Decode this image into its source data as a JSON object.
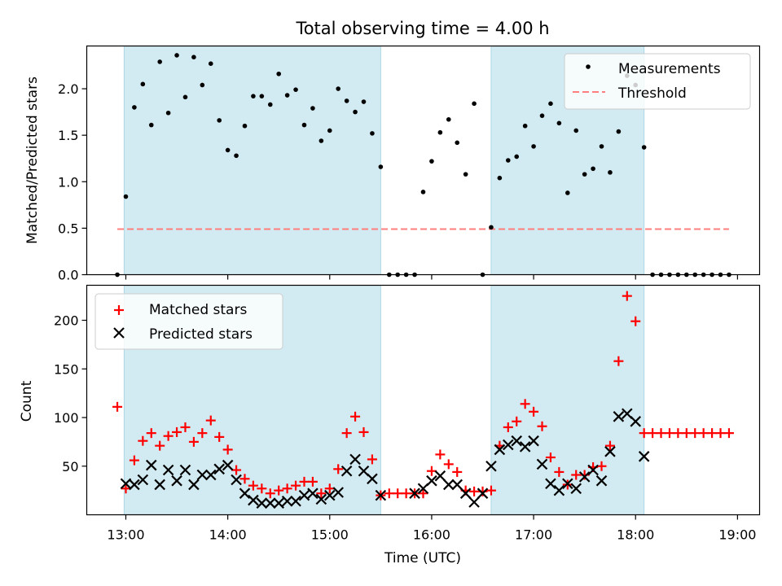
{
  "title": "Total observing time = 4.00 h",
  "colors": {
    "shade": "#add8e6",
    "measure": "#000000",
    "threshold": "#ff7f7f",
    "matched": "#ff0000",
    "predicted": "#000000"
  },
  "chart_data": [
    {
      "type": "scatter",
      "ylabel": "Matched/Predicted stars",
      "xlabel": "",
      "ylim": [
        0,
        2.46
      ],
      "yticks": [
        0.0,
        0.5,
        1.0,
        1.5,
        2.0
      ],
      "ytick_labels": [
        "0.0",
        "0.5",
        "1.0",
        "1.5",
        "2.0"
      ],
      "legend": {
        "placement": "top-right",
        "items": [
          {
            "label": "Measurements",
            "kind": "dot"
          },
          {
            "label": "Threshold",
            "kind": "dash"
          }
        ]
      },
      "shaded_ranges": [
        [
          "12:59",
          "15:30"
        ],
        [
          "16:35",
          "18:05"
        ]
      ],
      "threshold": {
        "y": 0.49,
        "x_range": [
          "12:55",
          "18:55"
        ]
      },
      "series": [
        {
          "name": "Measurements",
          "x": [
            "12:55",
            "13:00",
            "13:05",
            "13:10",
            "13:15",
            "13:20",
            "13:25",
            "13:30",
            "13:35",
            "13:40",
            "13:45",
            "13:50",
            "13:55",
            "14:00",
            "14:05",
            "14:10",
            "14:15",
            "14:20",
            "14:25",
            "14:30",
            "14:35",
            "14:40",
            "14:45",
            "14:50",
            "14:55",
            "15:00",
            "15:05",
            "15:10",
            "15:15",
            "15:20",
            "15:25",
            "15:30",
            "15:35",
            "15:40",
            "15:45",
            "15:50",
            "15:55",
            "16:00",
            "16:05",
            "16:10",
            "16:15",
            "16:20",
            "16:25",
            "16:30",
            "16:35",
            "16:40",
            "16:45",
            "16:50",
            "16:55",
            "17:00",
            "17:05",
            "17:10",
            "17:15",
            "17:20",
            "17:25",
            "17:30",
            "17:35",
            "17:40",
            "17:45",
            "17:50",
            "17:55",
            "18:00",
            "18:05",
            "18:10",
            "18:15",
            "18:20",
            "18:25",
            "18:30",
            "18:35",
            "18:40",
            "18:45",
            "18:50",
            "18:55"
          ],
          "y": [
            0.0,
            0.84,
            1.8,
            2.05,
            1.61,
            2.29,
            1.74,
            2.36,
            1.91,
            2.34,
            2.04,
            2.27,
            1.66,
            1.34,
            1.28,
            1.6,
            1.92,
            1.92,
            1.83,
            2.16,
            1.93,
            1.99,
            1.61,
            1.79,
            1.44,
            1.55,
            2.0,
            1.87,
            1.75,
            1.86,
            1.52,
            1.16,
            0.0,
            0.0,
            0.0,
            0.0,
            0.89,
            1.22,
            1.53,
            1.67,
            1.42,
            1.08,
            1.84,
            0.0,
            0.51,
            1.04,
            1.23,
            1.27,
            1.6,
            1.38,
            1.71,
            1.84,
            1.63,
            0.88,
            1.55,
            1.08,
            1.14,
            1.38,
            1.1,
            1.54,
            2.14,
            2.04,
            1.37,
            0.0,
            0.0,
            0.0,
            0.0,
            0.0,
            0.0,
            0.0,
            0.0,
            0.0,
            0.0
          ]
        }
      ]
    },
    {
      "type": "scatter",
      "ylabel": "Count",
      "xlabel": "Time (UTC)",
      "ylim": [
        0,
        236
      ],
      "yticks": [
        50,
        100,
        150,
        200
      ],
      "ytick_labels": [
        "50",
        "100",
        "150",
        "200"
      ],
      "xlim": [
        "12:37",
        "19:13"
      ],
      "xticks": [
        "13:00",
        "14:00",
        "15:00",
        "16:00",
        "17:00",
        "18:00",
        "19:00"
      ],
      "xtick_labels": [
        "13:00",
        "14:00",
        "15:00",
        "16:00",
        "17:00",
        "18:00",
        "19:00"
      ],
      "legend": {
        "placement": "top-left",
        "items": [
          {
            "label": "Matched stars",
            "kind": "plus"
          },
          {
            "label": "Predicted stars",
            "kind": "cross"
          }
        ]
      },
      "shaded_ranges": [
        [
          "12:59",
          "15:30"
        ],
        [
          "16:35",
          "18:05"
        ]
      ],
      "series": [
        {
          "name": "Matched stars",
          "x": [
            "12:55",
            "13:00",
            "13:05",
            "13:10",
            "13:15",
            "13:20",
            "13:25",
            "13:30",
            "13:35",
            "13:40",
            "13:45",
            "13:50",
            "13:55",
            "14:00",
            "14:05",
            "14:10",
            "14:15",
            "14:20",
            "14:25",
            "14:30",
            "14:35",
            "14:40",
            "14:45",
            "14:50",
            "14:55",
            "15:00",
            "15:05",
            "15:10",
            "15:15",
            "15:20",
            "15:25",
            "15:30",
            "15:35",
            "15:40",
            "15:45",
            "15:50",
            "15:55",
            "16:00",
            "16:05",
            "16:10",
            "16:15",
            "16:20",
            "16:25",
            "16:30",
            "16:35",
            "16:40",
            "16:45",
            "16:50",
            "16:55",
            "17:00",
            "17:05",
            "17:10",
            "17:15",
            "17:20",
            "17:25",
            "17:30",
            "17:35",
            "17:40",
            "17:45",
            "17:50",
            "17:55",
            "18:00",
            "18:05",
            "18:10",
            "18:15",
            "18:20",
            "18:25",
            "18:30",
            "18:35",
            "18:40",
            "18:45",
            "18:50",
            "18:55"
          ],
          "y": [
            111,
            27,
            56,
            76,
            84,
            71,
            81,
            85,
            90,
            75,
            84,
            97,
            80,
            67,
            46,
            37,
            30,
            27,
            22,
            25,
            27,
            30,
            34,
            34,
            22,
            27,
            47,
            84,
            101,
            85,
            57,
            20,
            22,
            22,
            22,
            22,
            22,
            45,
            62,
            52,
            44,
            25,
            24,
            24,
            25,
            71,
            90,
            96,
            114,
            106,
            91,
            59,
            44,
            31,
            41,
            41,
            49,
            50,
            71,
            158,
            225,
            199,
            84,
            84,
            84,
            84,
            84,
            84,
            84,
            84,
            84,
            84,
            84
          ]
        },
        {
          "name": "Predicted stars",
          "x": [
            "13:00",
            "13:05",
            "13:10",
            "13:15",
            "13:20",
            "13:25",
            "13:30",
            "13:35",
            "13:40",
            "13:45",
            "13:50",
            "13:55",
            "14:00",
            "14:05",
            "14:10",
            "14:15",
            "14:20",
            "14:25",
            "14:30",
            "14:35",
            "14:40",
            "14:45",
            "14:50",
            "14:55",
            "15:00",
            "15:05",
            "15:10",
            "15:15",
            "15:20",
            "15:25",
            "15:30",
            "15:50",
            "15:55",
            "16:00",
            "16:05",
            "16:10",
            "16:15",
            "16:20",
            "16:25",
            "16:30",
            "16:35",
            "16:40",
            "16:45",
            "16:50",
            "16:55",
            "17:00",
            "17:05",
            "17:10",
            "17:15",
            "17:20",
            "17:25",
            "17:30",
            "17:35",
            "17:40",
            "17:45",
            "17:50",
            "17:55",
            "18:00",
            "18:05"
          ],
          "y": [
            32,
            31,
            36,
            51,
            31,
            46,
            35,
            46,
            31,
            41,
            41,
            47,
            51,
            36,
            22,
            15,
            12,
            12,
            12,
            14,
            14,
            20,
            22,
            16,
            20,
            23,
            45,
            57,
            45,
            37,
            20,
            22,
            27,
            35,
            40,
            31,
            31,
            22,
            13,
            22,
            50,
            67,
            72,
            76,
            70,
            76,
            52,
            32,
            25,
            32,
            27,
            39,
            46,
            35,
            65,
            101,
            104,
            96,
            60
          ]
        }
      ]
    }
  ]
}
